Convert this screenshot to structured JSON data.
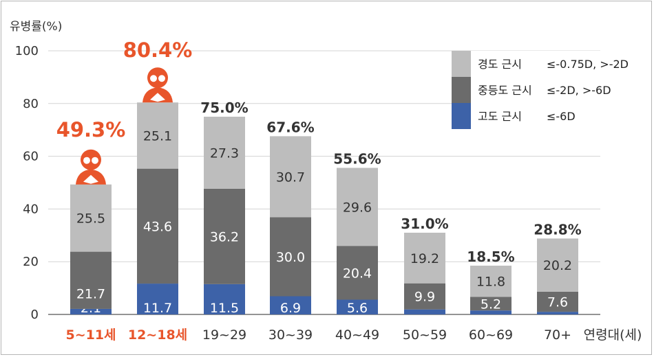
{
  "chart_data": {
    "type": "bar",
    "stacked": true,
    "ylabel": "유병률(%)",
    "xlabel": "연령대(세)",
    "ylim": [
      0,
      100
    ],
    "yticks": [
      0,
      20,
      40,
      60,
      80,
      100
    ],
    "grid": true,
    "legend_position": "top-right",
    "categories": [
      "5~11세",
      "12~18세",
      "19~29",
      "30~39",
      "40~49",
      "50~59",
      "60~69",
      "70+"
    ],
    "highlight_categories": [
      "5~11세",
      "12~18세"
    ],
    "series": [
      {
        "name": "고도 근시",
        "criterion": "≤-6D",
        "color": "#3d62a8",
        "values": [
          2.1,
          11.7,
          11.5,
          6.9,
          5.6,
          1.9,
          1.5,
          1.0
        ]
      },
      {
        "name": "중등도 근시",
        "criterion": "≤-2D, >-6D",
        "color": "#6b6b6b",
        "values": [
          21.7,
          43.6,
          36.2,
          30.0,
          20.4,
          9.9,
          5.2,
          7.6
        ]
      },
      {
        "name": "경도 근시",
        "criterion": "≤-0.75D, >-2D",
        "color": "#bdbdbd",
        "values": [
          25.5,
          25.1,
          27.3,
          30.7,
          29.6,
          19.2,
          11.8,
          20.2
        ]
      }
    ],
    "segment_labels": {
      "고도 근시": [
        "2.1",
        "11.7",
        "11.5",
        "6.9",
        "5.6",
        "",
        "",
        ""
      ],
      "중등도 근시": [
        "21.7",
        "43.6",
        "36.2",
        "30.0",
        "20.4",
        "9.9",
        "5.2",
        "7.6"
      ],
      "경도 근시": [
        "25.5",
        "25.1",
        "27.3",
        "30.7",
        "29.6",
        "19.2",
        "11.8",
        "20.2"
      ]
    },
    "totals": [
      49.3,
      80.4,
      75.0,
      67.6,
      55.6,
      31.0,
      18.5,
      28.8
    ],
    "total_labels": [
      "49.3%",
      "80.4%",
      "75.0%",
      "67.6%",
      "55.6%",
      "31.0%",
      "18.5%",
      "28.8%"
    ],
    "icons": [
      "reading-student-icon",
      "reading-student-icon"
    ]
  }
}
